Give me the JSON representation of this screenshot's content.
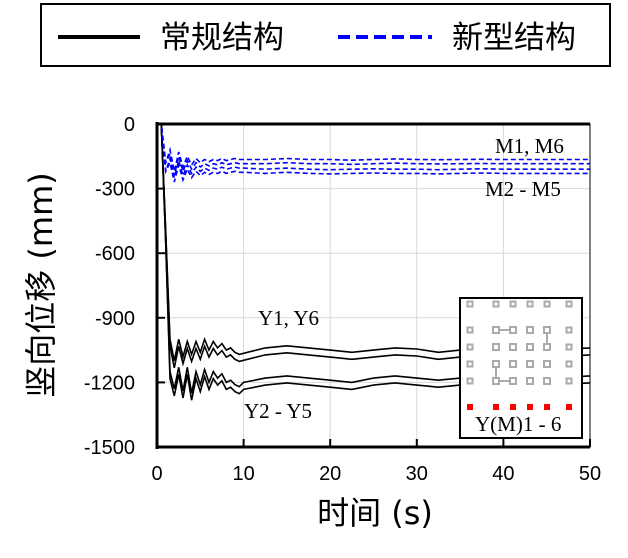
{
  "chart_data": {
    "type": "line",
    "title": "",
    "xlabel": "时间 (s)",
    "ylabel": "竖向位移 (mm)",
    "xlim": [
      0,
      50
    ],
    "ylim": [
      -1500,
      0
    ],
    "xticks": [
      0,
      10,
      20,
      30,
      40,
      50
    ],
    "yticks": [
      0,
      -300,
      -600,
      -900,
      -1200,
      -1500
    ],
    "grid": true,
    "legend": {
      "placement": "top-outside",
      "entries": [
        {
          "label": "常规结构",
          "color": "#000000",
          "style": "solid"
        },
        {
          "label": "新型结构",
          "color": "#0000FF",
          "style": "dashed"
        }
      ]
    },
    "x": [
      0,
      0.5,
      1,
      1.5,
      2,
      2.5,
      3,
      3.5,
      4,
      4.5,
      5,
      5.5,
      6,
      6.5,
      7,
      7.5,
      8,
      8.5,
      9,
      9.5,
      10,
      12.5,
      15,
      17.5,
      20,
      22.5,
      25,
      27.5,
      30,
      32.5,
      35,
      37.5,
      40,
      42.5,
      45,
      47.5,
      50
    ],
    "series": [
      {
        "name": "Y1, Y6",
        "group": "常规结构",
        "color": "#000000",
        "style": "solid",
        "values": [
          0,
          0,
          -500,
          -1000,
          -1100,
          -1000,
          -1080,
          -1010,
          -1070,
          -1010,
          -1060,
          -1000,
          -1050,
          -1010,
          -1040,
          -1020,
          -1050,
          -1040,
          -1060,
          -1070,
          -1065,
          -1040,
          -1030,
          -1040,
          -1050,
          -1060,
          -1050,
          -1040,
          -1045,
          -1060,
          -1050,
          -1040,
          -1045,
          -1050,
          -1040,
          -1045,
          -1040
        ]
      },
      {
        "name": "Y2 - Y5",
        "group": "常规结构",
        "color": "#000000",
        "style": "solid",
        "values": [
          0,
          0,
          -550,
          -1150,
          -1230,
          -1130,
          -1240,
          -1130,
          -1250,
          -1150,
          -1210,
          -1140,
          -1200,
          -1150,
          -1180,
          -1160,
          -1200,
          -1190,
          -1210,
          -1220,
          -1200,
          -1180,
          -1170,
          -1180,
          -1190,
          -1200,
          -1180,
          -1170,
          -1180,
          -1190,
          -1180,
          -1170,
          -1175,
          -1180,
          -1170,
          -1175,
          -1170
        ]
      },
      {
        "name": "M1, M6",
        "group": "新型结构",
        "color": "#0000FF",
        "style": "dashed",
        "values": [
          0,
          0,
          -180,
          -120,
          -220,
          -130,
          -200,
          -150,
          -190,
          -160,
          -180,
          -165,
          -175,
          -165,
          -170,
          -160,
          -170,
          -165,
          -160,
          -165,
          -165,
          -165,
          -160,
          -165,
          -165,
          -168,
          -165,
          -162,
          -165,
          -166,
          -165,
          -164,
          -165,
          -165,
          -165,
          -165,
          -165
        ]
      },
      {
        "name": "M2 - M5",
        "group": "新型结构",
        "color": "#0000FF",
        "style": "dashed",
        "values": [
          0,
          0,
          -220,
          -160,
          -250,
          -170,
          -240,
          -190,
          -230,
          -200,
          -220,
          -205,
          -215,
          -205,
          -210,
          -200,
          -210,
          -205,
          -200,
          -205,
          -205,
          -210,
          -205,
          -210,
          -212,
          -210,
          -208,
          -210,
          -210,
          -212,
          -210,
          -208,
          -210,
          -210,
          -210,
          -210,
          -210
        ]
      }
    ],
    "annotations": [
      "M1, M6",
      "M2 - M5",
      "Y1, Y6",
      "Y2 - Y5"
    ],
    "inset": {
      "label": "Y(M)1 - 6",
      "highlight_color": "#FF0000",
      "node_color": "#AAAAAA"
    }
  }
}
